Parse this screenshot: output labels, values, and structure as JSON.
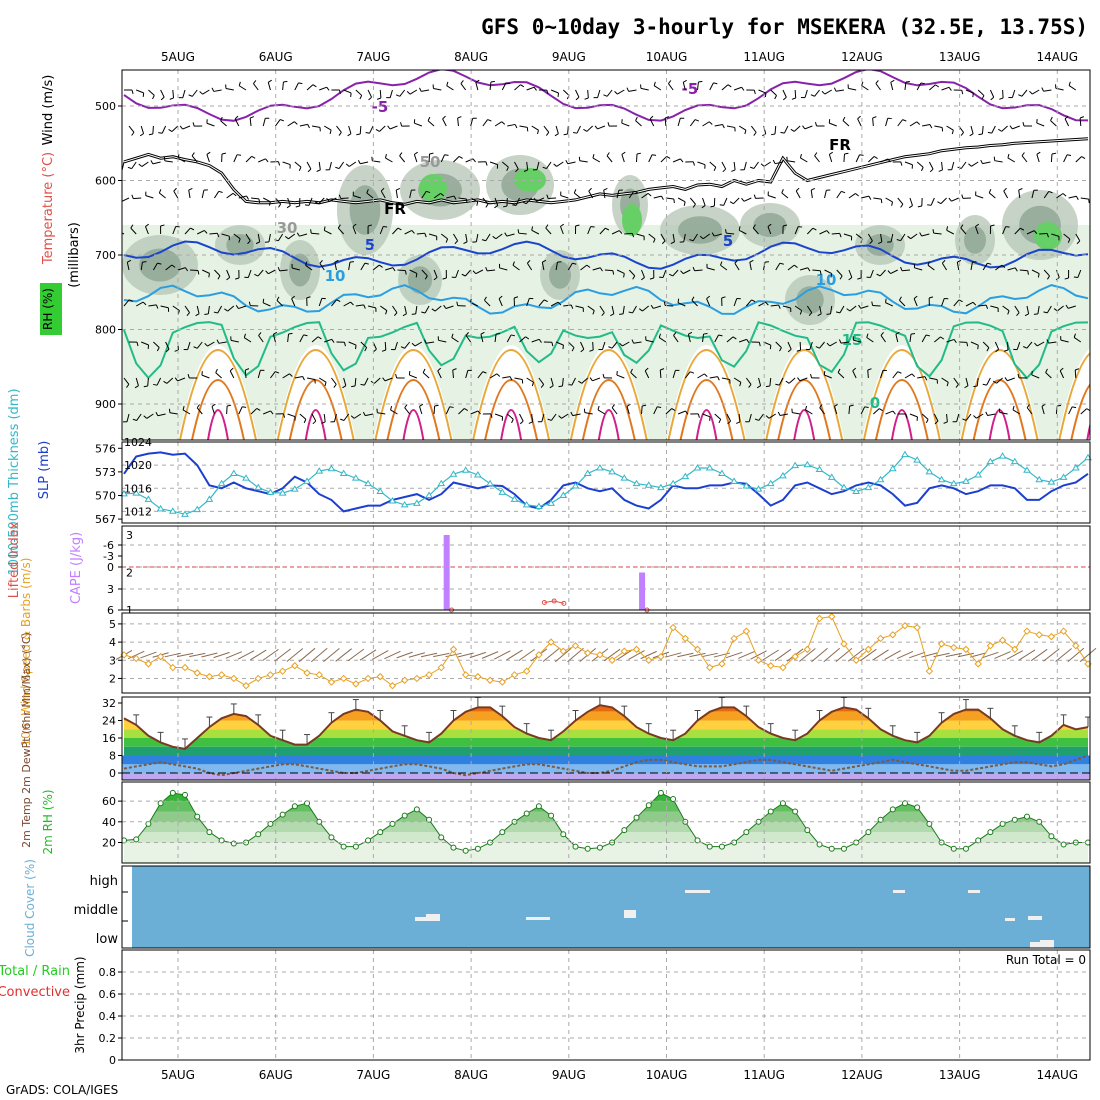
{
  "title": "GFS 0~10day 3-hourly for MSEKERA (32.5E, 13.75S)",
  "footer": "GrADS: COLA/IGES",
  "run_total": "Run Total = 0",
  "dates": [
    "5AUG",
    "6AUG",
    "7AUG",
    "8AUG",
    "9AUG",
    "10AUG",
    "11AUG",
    "12AUG",
    "13AUG",
    "14AUG"
  ],
  "colors": {
    "wind": "#000000",
    "temperature": "#e0504a",
    "rh": "#22bb22",
    "thickness": "#33b8c8",
    "slp": "#1c3fd0",
    "lifted": "#e0504a",
    "cape": "#c080ff",
    "wind10": "#e8a020",
    "rh2m": "#22bb22",
    "cloud": "#6baed6",
    "rain": "#22cc22",
    "convective": "#e03030"
  },
  "chart_data": [
    {
      "type": "heatmap",
      "name": "upper-air",
      "ylabel": "(millibars)",
      "label_parts": [
        "Wind (m/s)",
        "Temperature (°C)",
        "RH (%)"
      ],
      "y_ticks": [
        500,
        600,
        700,
        800,
        900
      ],
      "ylim": [
        1000,
        450
      ],
      "contour_labels": [
        "-5",
        "-5",
        "FR",
        "FR",
        "5",
        "5",
        "10",
        "10",
        "15",
        "30",
        "50",
        "0"
      ],
      "freezing_level_mb": [
        575,
        570,
        565,
        570,
        568,
        572,
        575,
        580,
        590,
        612,
        628,
        630,
        630,
        628,
        630,
        628,
        630,
        626,
        628,
        630,
        628,
        626,
        630,
        632,
        628,
        630,
        626,
        630,
        628,
        626,
        630,
        628,
        630,
        626,
        628,
        630,
        628,
        626,
        622,
        618,
        620,
        618,
        616,
        612,
        610,
        608,
        612,
        606,
        605,
        608,
        600,
        605,
        600,
        602,
        570,
        590,
        600,
        596,
        592,
        588,
        584,
        580,
        576,
        572,
        568,
        566,
        564,
        560,
        558,
        556,
        555,
        553,
        552,
        550,
        549,
        548,
        547,
        546,
        545,
        544
      ]
    },
    {
      "type": "line",
      "name": "thickness-slp",
      "ylabel_left": "1000-500mb Thickness (dm)",
      "ylabel_right": "SLP (mb)",
      "left_ticks": [
        567,
        570,
        573,
        576
      ],
      "right_ticks": [
        1012,
        1016,
        1020,
        1024
      ],
      "series": [
        {
          "name": "SLP (mb)",
          "axis": "right",
          "values": [
            1018.5,
            1021.5,
            1022,
            1022.2,
            1021.8,
            1022,
            1020,
            1016.5,
            1016,
            1017,
            1016,
            1015.5,
            1015,
            1016,
            1018,
            1017,
            1015,
            1014,
            1012,
            1012.5,
            1013,
            1013,
            1014,
            1014.5,
            1015,
            1014,
            1015,
            1017,
            1016.5,
            1016,
            1016.5,
            1016.4,
            1015,
            1013,
            1012.5,
            1014,
            1016.5,
            1017,
            1016,
            1015.5,
            1016,
            1014,
            1013,
            1012.5,
            1014,
            1016.5,
            1016,
            1016,
            1016.5,
            1016.5,
            1017,
            1016.8,
            1015,
            1013,
            1014,
            1016.5,
            1017,
            1016,
            1015,
            1015.5,
            1016.5,
            1017,
            1016.5,
            1015,
            1013,
            1013.5,
            1016,
            1016.5,
            1016,
            1015,
            1015.5,
            1016.5,
            1016.5,
            1016,
            1014,
            1014,
            1015.5,
            1016.5,
            1017,
            1018.5
          ]
        },
        {
          "name": "1000-500mb Thickness (dm)",
          "axis": "left",
          "values": [
            570.2,
            570.3,
            569.5,
            568.3,
            568,
            567.6,
            568.2,
            569.5,
            571.5,
            572.8,
            572.2,
            571,
            570.4,
            570.3,
            570.8,
            571.8,
            573.1,
            573.4,
            572.8,
            572.2,
            571.5,
            570.5,
            569.3,
            568.8,
            569,
            570,
            571.5,
            572.7,
            573.2,
            572.6,
            571.5,
            570.4,
            569.5,
            568.8,
            568.6,
            569,
            570,
            571.2,
            572.8,
            573.5,
            573,
            572.2,
            571.5,
            571.3,
            571,
            571.5,
            572.4,
            573.5,
            573.5,
            572.8,
            571.8,
            571.2,
            570.8,
            571.5,
            572.5,
            573.8,
            573.9,
            573.3,
            572.3,
            571,
            570.5,
            571,
            572,
            573.4,
            575.2,
            574.5,
            573,
            572,
            571.5,
            571.8,
            572.6,
            574.3,
            575,
            574.3,
            573.2,
            572,
            571.7,
            572.3,
            573.5,
            574.8
          ]
        }
      ]
    },
    {
      "type": "bar",
      "name": "cape-lifted",
      "ylabel_left": "Lifted Index",
      "ylabel_right": "CAPE (J/kg)",
      "left_ticks": [
        "-6",
        "-3",
        "0",
        "3",
        "6"
      ],
      "right_ticks": [
        "1",
        "2",
        "3"
      ],
      "cape_series": [
        {
          "date_index": 2.75,
          "value": 3
        },
        {
          "date_index": 4.75,
          "value": 2
        }
      ],
      "lifted_index": [
        {
          "x": 2.8,
          "value": 6
        },
        {
          "x": 3.75,
          "value": 3.5
        },
        {
          "x": 3.85,
          "value": 3.0
        },
        {
          "x": 3.95,
          "value": 3.8
        },
        {
          "x": 4.8,
          "value": 6
        }
      ]
    },
    {
      "type": "line",
      "name": "wind10m",
      "ylabel": "10m Wind Speed & Barbs (m/s)",
      "ticks": [
        2,
        3,
        4,
        5
      ],
      "series": [
        {
          "name": "10m Wind Speed",
          "values": [
            3.3,
            3.1,
            2.8,
            3.2,
            2.6,
            2.6,
            2.3,
            2.1,
            2.2,
            2.0,
            1.6,
            2.0,
            2.2,
            2.4,
            2.7,
            2.3,
            2.2,
            1.8,
            2.0,
            1.7,
            2.0,
            2.1,
            1.6,
            1.9,
            2.0,
            2.2,
            2.6,
            3.6,
            2.2,
            2.1,
            1.9,
            1.8,
            2.2,
            2.4,
            3.3,
            4.0,
            3.5,
            3.8,
            3.4,
            3.3,
            3.0,
            3.5,
            3.6,
            3.0,
            3.2,
            4.8,
            4.2,
            3.6,
            2.6,
            2.8,
            4.2,
            4.6,
            3.0,
            2.7,
            2.6,
            3.2,
            3.6,
            5.3,
            5.4,
            3.9,
            3.0,
            3.6,
            4.2,
            4.4,
            4.9,
            4.8,
            2.4,
            3.9,
            3.7,
            3.6,
            2.8,
            3.8,
            4.1,
            3.6,
            4.6,
            4.4,
            4.3,
            4.6,
            3.8,
            2.8
          ]
        }
      ]
    },
    {
      "type": "area",
      "name": "temperature2m",
      "ylabel": "2m Temp 2m DewPt (6hr Min/Max) (°C)",
      "ticks": [
        0,
        8,
        16,
        24,
        32
      ],
      "series": [
        {
          "name": "2m Temp",
          "values": [
            25,
            22,
            17,
            14,
            12,
            11,
            16,
            21,
            25,
            27,
            26,
            22,
            17,
            15,
            13,
            13,
            17,
            23,
            27,
            29,
            28,
            24,
            19,
            17,
            15,
            14,
            18,
            24,
            28,
            30,
            30,
            26,
            21,
            18,
            16,
            15,
            19,
            24,
            28,
            31,
            30,
            26,
            21,
            18,
            16,
            15,
            18,
            24,
            28,
            30,
            30,
            26,
            21,
            18,
            16,
            15,
            18,
            24,
            28,
            30,
            29,
            25,
            20,
            17,
            15,
            14,
            17,
            23,
            27,
            29,
            29,
            25,
            20,
            17,
            15,
            14,
            17,
            22,
            20,
            21
          ]
        },
        {
          "name": "2m DewPt",
          "values": [
            2,
            3,
            4,
            5,
            4,
            3,
            2,
            0,
            -1,
            0,
            1,
            2,
            3,
            4,
            4,
            3,
            2,
            1,
            0,
            0,
            1,
            2,
            3,
            4,
            4,
            3,
            2,
            0,
            -1,
            0,
            1,
            2,
            3,
            4,
            4,
            3,
            2,
            1,
            0,
            0,
            1,
            3,
            5,
            6,
            6,
            5,
            4,
            3,
            3,
            3,
            4,
            5,
            6,
            6,
            5,
            4,
            3,
            2,
            1,
            2,
            3,
            4,
            5,
            6,
            5,
            4,
            3,
            2,
            1,
            1,
            2,
            3,
            4,
            5,
            5,
            4,
            3,
            4,
            6,
            8
          ]
        }
      ]
    },
    {
      "type": "area",
      "name": "rh2m",
      "ylabel": "2m RH (%)",
      "ticks": [
        20,
        40,
        60
      ],
      "series": [
        {
          "name": "2m RH",
          "values": [
            22,
            23,
            38,
            58,
            68,
            66,
            45,
            30,
            22,
            19,
            20,
            28,
            38,
            47,
            55,
            58,
            40,
            25,
            16,
            16,
            22,
            30,
            38,
            46,
            52,
            42,
            25,
            15,
            12,
            14,
            20,
            30,
            40,
            48,
            55,
            46,
            28,
            16,
            14,
            15,
            20,
            32,
            44,
            56,
            68,
            62,
            40,
            22,
            16,
            16,
            20,
            30,
            40,
            50,
            58,
            50,
            32,
            18,
            14,
            14,
            20,
            30,
            42,
            52,
            58,
            54,
            38,
            20,
            14,
            14,
            22,
            30,
            38,
            42,
            45,
            40,
            26,
            18,
            20,
            20
          ]
        }
      ]
    },
    {
      "type": "heatmap",
      "name": "cloud-cover",
      "ylabel": "Cloud Cover (%)",
      "levels": [
        "high",
        "middle",
        "low"
      ]
    },
    {
      "type": "bar",
      "name": "precip",
      "ylabel": "3hr Precip (mm)",
      "label_parts": [
        "Total / Rain",
        "Convective"
      ],
      "ticks": [
        "0",
        "0.2",
        "0.4",
        "0.6",
        "0.8"
      ],
      "values": []
    }
  ]
}
